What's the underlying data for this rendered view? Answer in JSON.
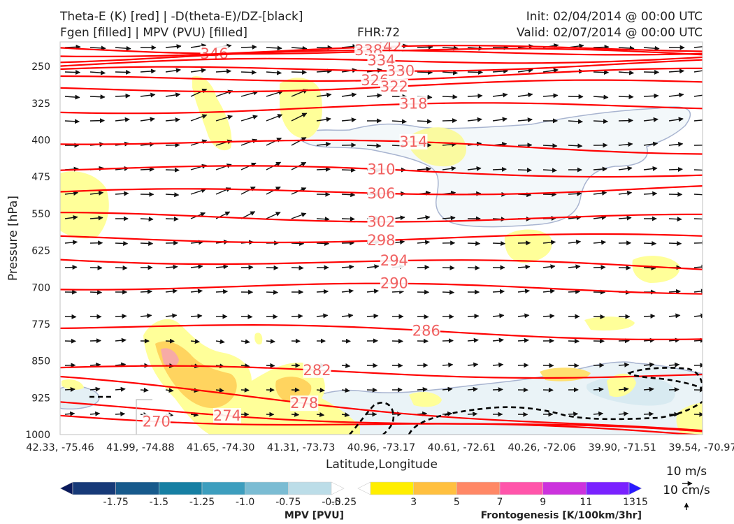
{
  "header": {
    "title_line1": "Theta-E (K) [red] | -D(theta-E)/DZ-[black]",
    "title_line2": "Fgen [filled] | MPV (PVU) [filled]",
    "fhr": "FHR:72",
    "init": "Init: 02/04/2014 @ 00:00 UTC",
    "valid": "Valid: 02/07/2014 @ 00:00 UTC"
  },
  "chart_data": {
    "type": "cross-section",
    "xlabel": "Latitude,Longitude",
    "ylabel": "Pressure [hPa]",
    "y_ticks": [
      250,
      325,
      400,
      475,
      550,
      625,
      700,
      775,
      850,
      925,
      1000
    ],
    "ylim": [
      1000,
      200
    ],
    "x_ticks": [
      "42.33, -75.46",
      "41.99, -74.88",
      "41.65, -74.30",
      "41.31, -73.73",
      "40.96, -73.17",
      "40.61, -72.61",
      "40.26, -72.06",
      "39.90, -71.51",
      "39.54, -70.97"
    ],
    "theta_e": {
      "color": "#ff0000",
      "label_color": "#f06060",
      "contours": [
        {
          "v": 346,
          "l": "346",
          "left": 212,
          "right": 226,
          "lx": 0.24
        },
        {
          "v": 342,
          "l": "342",
          "left": 222,
          "right": 212,
          "lx": 0.51
        },
        {
          "v": 338,
          "l": "338",
          "left": 234,
          "right": 216,
          "lx": 0.48
        },
        {
          "v": 334,
          "l": "334",
          "left": 248,
          "right": 230,
          "lx": 0.5
        },
        {
          "v": 330,
          "l": "330",
          "left": 262,
          "right": 243,
          "lx": 0.53
        },
        {
          "v": 326,
          "l": "326",
          "left": 278,
          "right": 262,
          "lx": 0.49
        },
        {
          "v": 322,
          "l": "322",
          "left": 296,
          "right": 284,
          "lx": 0.52
        },
        {
          "v": 318,
          "l": "318",
          "left": 338,
          "right": 330,
          "lx": 0.55
        },
        {
          "v": 314,
          "l": "314",
          "left": 400,
          "right": 420,
          "lx": 0.55
        },
        {
          "v": 310,
          "l": "310",
          "left": 458,
          "right": 468,
          "lx": 0.5
        },
        {
          "v": 306,
          "l": "306",
          "left": 510,
          "right": 498,
          "lx": 0.5
        },
        {
          "v": 302,
          "l": "302",
          "left": 556,
          "right": 560,
          "lx": 0.5
        },
        {
          "v": 298,
          "l": "298",
          "left": 600,
          "right": 600,
          "lx": 0.5
        },
        {
          "v": 294,
          "l": "294",
          "left": 640,
          "right": 660,
          "lx": 0.52
        },
        {
          "v": 290,
          "l": "290",
          "left": 696,
          "right": 705,
          "lx": 0.52
        },
        {
          "v": 286,
          "l": "286",
          "left": 778,
          "right": 800,
          "lx": 0.57
        },
        {
          "v": 282,
          "l": "282",
          "left": 866,
          "right": 880,
          "lx": 0.4
        },
        {
          "v": 278,
          "l": "278",
          "left": 890,
          "right": 1000,
          "lx": 0.38
        },
        {
          "v": 274,
          "l": "274",
          "left": 940,
          "right": 1000,
          "lx": 0.26
        },
        {
          "v": 270,
          "l": "270",
          "left": 960,
          "right": 1000,
          "lx": 0.15
        }
      ]
    },
    "wind_scale": {
      "u_label": "10 m/s",
      "w_label": "10 cm/s"
    },
    "mpv_colorbar": {
      "label": "MPV [PVU]",
      "ticks": [
        "-1.75",
        "-1.5",
        "-1.25",
        "-1.0",
        "-0.75",
        "-0.5",
        "-0.25"
      ],
      "colors": [
        "#0a1a5c",
        "#173a78",
        "#175a8c",
        "#167fa3",
        "#3d9ebe",
        "#7bbcd3",
        "#bcdde8",
        "#ffffff"
      ]
    },
    "fgen_colorbar": {
      "label": "Frontogenesis [K/100km/3hr]",
      "ticks": [
        "3",
        "5",
        "7",
        "9",
        "11",
        "13",
        "15"
      ],
      "colors": [
        "#ffffff",
        "#ffee00",
        "#ffc040",
        "#ff8866",
        "#ff55aa",
        "#cc33dd",
        "#7a22ff",
        "#2a1aff"
      ]
    }
  }
}
